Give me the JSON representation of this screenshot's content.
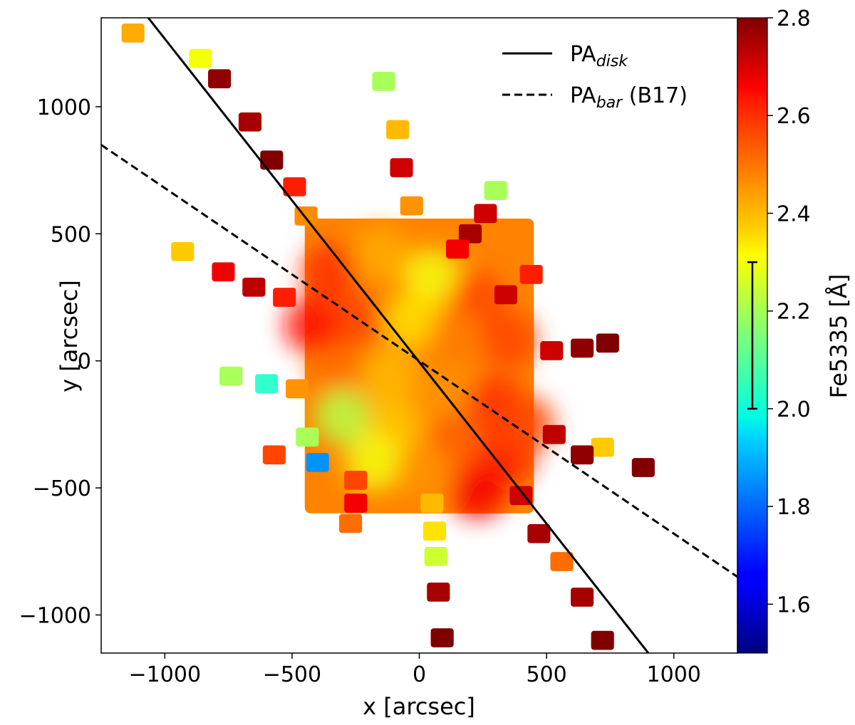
{
  "chart_data": {
    "type": "scatter",
    "xlabel": "x [arcsec]",
    "ylabel": "y [arcsec]",
    "xlim": [
      -1250,
      1250
    ],
    "ylim": [
      -1150,
      1350
    ],
    "xticks": [
      -1000,
      -500,
      0,
      500,
      1000
    ],
    "yticks": [
      -1000,
      -500,
      0,
      500,
      1000
    ],
    "xtick_labels": [
      "−1000",
      "−500",
      "0",
      "500",
      "1000"
    ],
    "ytick_labels": [
      "−1000",
      "−500",
      "0",
      "500",
      "1000"
    ],
    "colorbar": {
      "label": "Fe5335 [Å]",
      "range": [
        1.5,
        2.8
      ],
      "ticks": [
        1.6,
        1.8,
        2.0,
        2.2,
        2.4,
        2.6,
        2.8
      ],
      "tick_labels": [
        "1.6",
        "1.8",
        "2.0",
        "2.2",
        "2.4",
        "2.6",
        "2.8"
      ],
      "errorbar": [
        2.0,
        2.3
      ],
      "colormap": "jet"
    },
    "lines": [
      {
        "name": "PA_disk",
        "style": "solid",
        "color": "#000000",
        "points": [
          [
            -1065,
            1350
          ],
          [
            900,
            -1150
          ]
        ]
      },
      {
        "name": "PA_bar (B17)",
        "style": "dashed",
        "color": "#000000",
        "points": [
          [
            -1250,
            850
          ],
          [
            1250,
            -850
          ]
        ]
      }
    ],
    "legend": {
      "position": "top-right",
      "entries": [
        {
          "label_base": "PA",
          "label_sub": "disk",
          "style": "solid"
        },
        {
          "label_base": "PA",
          "label_sub": "bar",
          "label_suffix": " (B17)",
          "style": "dashed"
        }
      ]
    },
    "central_region": {
      "x_range": [
        -450,
        450
      ],
      "y_range": [
        -600,
        560
      ],
      "value": 2.47
    },
    "tiles": [
      {
        "x": -1125,
        "y": 1290,
        "v": 2.42
      },
      {
        "x": -860,
        "y": 1190,
        "v": 2.3
      },
      {
        "x": -785,
        "y": 1110,
        "v": 2.78
      },
      {
        "x": -665,
        "y": 940,
        "v": 2.75
      },
      {
        "x": -580,
        "y": 790,
        "v": 2.8
      },
      {
        "x": -490,
        "y": 685,
        "v": 2.6
      },
      {
        "x": -445,
        "y": 570,
        "v": 2.46
      },
      {
        "x": -930,
        "y": 430,
        "v": 2.38
      },
      {
        "x": -770,
        "y": 350,
        "v": 2.65
      },
      {
        "x": -650,
        "y": 290,
        "v": 2.72
      },
      {
        "x": -530,
        "y": 250,
        "v": 2.6
      },
      {
        "x": -740,
        "y": -60,
        "v": 2.2
      },
      {
        "x": -600,
        "y": -90,
        "v": 2.05
      },
      {
        "x": -480,
        "y": -110,
        "v": 2.45
      },
      {
        "x": -570,
        "y": -370,
        "v": 2.55
      },
      {
        "x": -440,
        "y": -300,
        "v": 2.2
      },
      {
        "x": -400,
        "y": -400,
        "v": 1.85
      },
      {
        "x": -250,
        "y": -470,
        "v": 2.55
      },
      {
        "x": -250,
        "y": -560,
        "v": 2.65
      },
      {
        "x": -270,
        "y": -640,
        "v": 2.5
      },
      {
        "x": -140,
        "y": 1100,
        "v": 2.2
      },
      {
        "x": -85,
        "y": 910,
        "v": 2.4
      },
      {
        "x": -70,
        "y": 760,
        "v": 2.7
      },
      {
        "x": -30,
        "y": 610,
        "v": 2.45
      },
      {
        "x": 50,
        "y": -560,
        "v": 2.4
      },
      {
        "x": 60,
        "y": -670,
        "v": 2.35
      },
      {
        "x": 65,
        "y": -770,
        "v": 2.25
      },
      {
        "x": 75,
        "y": -910,
        "v": 2.75
      },
      {
        "x": 90,
        "y": -1090,
        "v": 2.8
      },
      {
        "x": 300,
        "y": 670,
        "v": 2.2
      },
      {
        "x": 260,
        "y": 580,
        "v": 2.7
      },
      {
        "x": 200,
        "y": 500,
        "v": 2.75
      },
      {
        "x": 150,
        "y": 440,
        "v": 2.65
      },
      {
        "x": 440,
        "y": 340,
        "v": 2.6
      },
      {
        "x": 340,
        "y": 260,
        "v": 2.7
      },
      {
        "x": 520,
        "y": 40,
        "v": 2.7
      },
      {
        "x": 640,
        "y": 50,
        "v": 2.78
      },
      {
        "x": 740,
        "y": 70,
        "v": 2.8
      },
      {
        "x": 720,
        "y": -340,
        "v": 2.38
      },
      {
        "x": 640,
        "y": -370,
        "v": 2.78
      },
      {
        "x": 530,
        "y": -290,
        "v": 2.72
      },
      {
        "x": 880,
        "y": -420,
        "v": 2.8
      },
      {
        "x": 400,
        "y": -530,
        "v": 2.7
      },
      {
        "x": 470,
        "y": -680,
        "v": 2.75
      },
      {
        "x": 560,
        "y": -790,
        "v": 2.5
      },
      {
        "x": 640,
        "y": -930,
        "v": 2.75
      },
      {
        "x": 720,
        "y": -1100,
        "v": 2.8
      }
    ],
    "blobs": [
      {
        "x": -350,
        "y": 350,
        "v": 2.58
      },
      {
        "x": -150,
        "y": 420,
        "v": 2.42
      },
      {
        "x": 50,
        "y": 330,
        "v": 2.3
      },
      {
        "x": 230,
        "y": 240,
        "v": 2.55
      },
      {
        "x": -250,
        "y": 160,
        "v": 2.55
      },
      {
        "x": -30,
        "y": 160,
        "v": 2.35
      },
      {
        "x": 150,
        "y": 90,
        "v": 2.48
      },
      {
        "x": 350,
        "y": 80,
        "v": 2.55
      },
      {
        "x": -320,
        "y": -40,
        "v": 2.5
      },
      {
        "x": -120,
        "y": -60,
        "v": 2.4
      },
      {
        "x": 100,
        "y": -120,
        "v": 2.45
      },
      {
        "x": 300,
        "y": -170,
        "v": 2.58
      },
      {
        "x": -300,
        "y": -220,
        "v": 2.22
      },
      {
        "x": -100,
        "y": -260,
        "v": 2.38
      },
      {
        "x": 150,
        "y": -320,
        "v": 2.52
      },
      {
        "x": 340,
        "y": -380,
        "v": 2.6
      },
      {
        "x": -180,
        "y": -400,
        "v": 2.3
      },
      {
        "x": 20,
        "y": -440,
        "v": 2.45
      },
      {
        "x": 230,
        "y": -510,
        "v": 2.65
      },
      {
        "x": -420,
        "y": 140,
        "v": 2.62
      },
      {
        "x": 420,
        "y": -250,
        "v": 2.55
      }
    ]
  }
}
